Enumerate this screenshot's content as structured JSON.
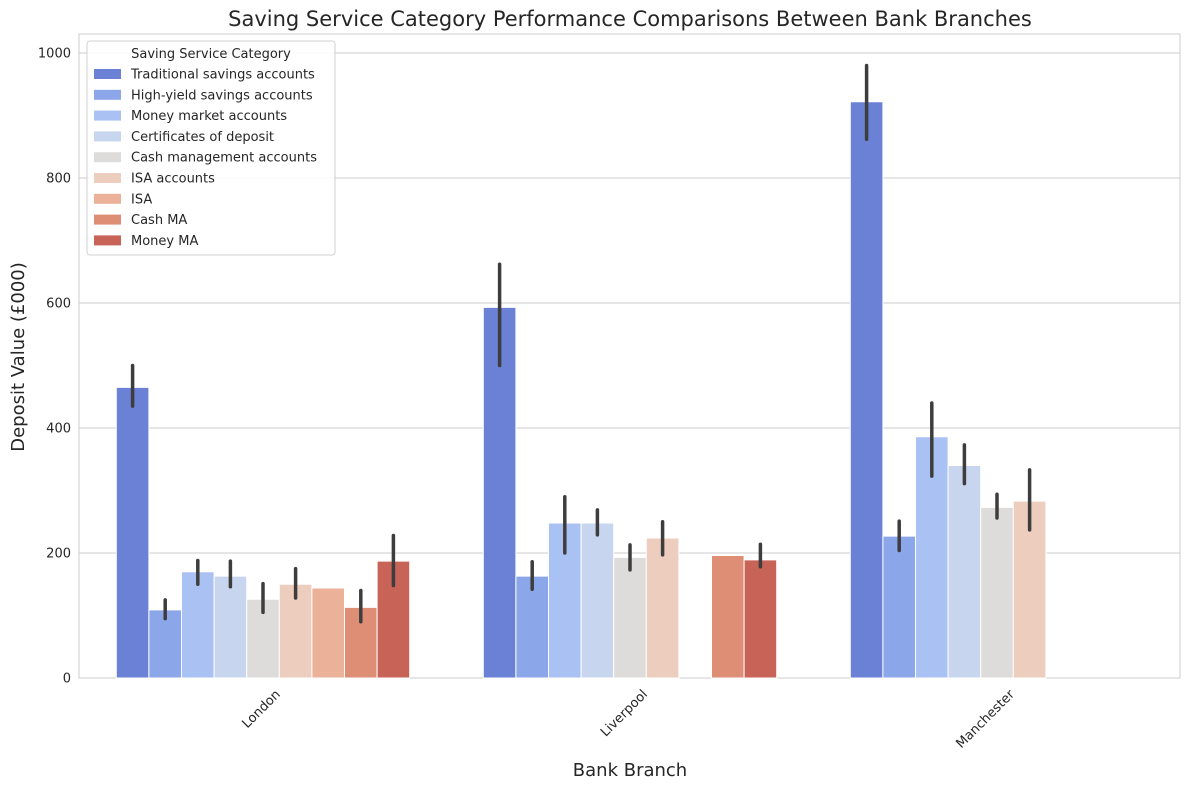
{
  "chart_data": {
    "type": "bar",
    "title": "Saving Service Category Performance Comparisons Between Bank Branches",
    "xlabel": "Bank Branch",
    "ylabel": "Deposit Value (£000)",
    "ylim": [
      0,
      1030
    ],
    "yticks": [
      0,
      200,
      400,
      600,
      800,
      1000
    ],
    "grid": true,
    "legend_title": "Saving Service Category",
    "legend_position": "top-left",
    "categories": [
      "London",
      "Liverpool",
      "Manchester"
    ],
    "series": [
      {
        "name": "Traditional savings accounts",
        "color": "#6a81d5",
        "values": [
          465,
          593,
          922
        ],
        "err_low": [
          435,
          500,
          862
        ],
        "err_high": [
          500,
          662,
          980
        ]
      },
      {
        "name": "High-yield savings accounts",
        "color": "#8ca7e9",
        "values": [
          109,
          163,
          227
        ],
        "err_low": [
          95,
          142,
          204
        ],
        "err_high": [
          125,
          186,
          251
        ]
      },
      {
        "name": "Money market accounts",
        "color": "#aac1f3",
        "values": [
          170,
          248,
          386
        ],
        "err_low": [
          150,
          200,
          323
        ],
        "err_high": [
          188,
          290,
          440
        ]
      },
      {
        "name": "Certificates of deposit",
        "color": "#c8d5ee",
        "values": [
          163,
          248,
          340
        ],
        "err_low": [
          146,
          229,
          311
        ],
        "err_high": [
          187,
          269,
          373
        ]
      },
      {
        "name": "Cash management accounts",
        "color": "#dddcdb",
        "values": [
          126,
          193,
          273
        ],
        "err_low": [
          105,
          173,
          256
        ],
        "err_high": [
          151,
          213,
          294
        ]
      },
      {
        "name": "ISA accounts",
        "color": "#eccdbe",
        "values": [
          150,
          224,
          283
        ],
        "err_low": [
          128,
          197,
          237
        ],
        "err_high": [
          175,
          250,
          333
        ]
      },
      {
        "name": "ISA",
        "color": "#ebb299",
        "values": [
          144,
          null,
          null
        ],
        "err_low": [
          null,
          null,
          null
        ],
        "err_high": [
          null,
          null,
          null
        ]
      },
      {
        "name": "Cash MA",
        "color": "#df8e76",
        "values": [
          113,
          196,
          null
        ],
        "err_low": [
          90,
          null,
          null
        ],
        "err_high": [
          140,
          null,
          null
        ]
      },
      {
        "name": "Money MA",
        "color": "#c76357",
        "values": [
          187,
          189,
          null
        ],
        "err_low": [
          148,
          178,
          null
        ],
        "err_high": [
          228,
          214,
          null
        ]
      }
    ]
  }
}
